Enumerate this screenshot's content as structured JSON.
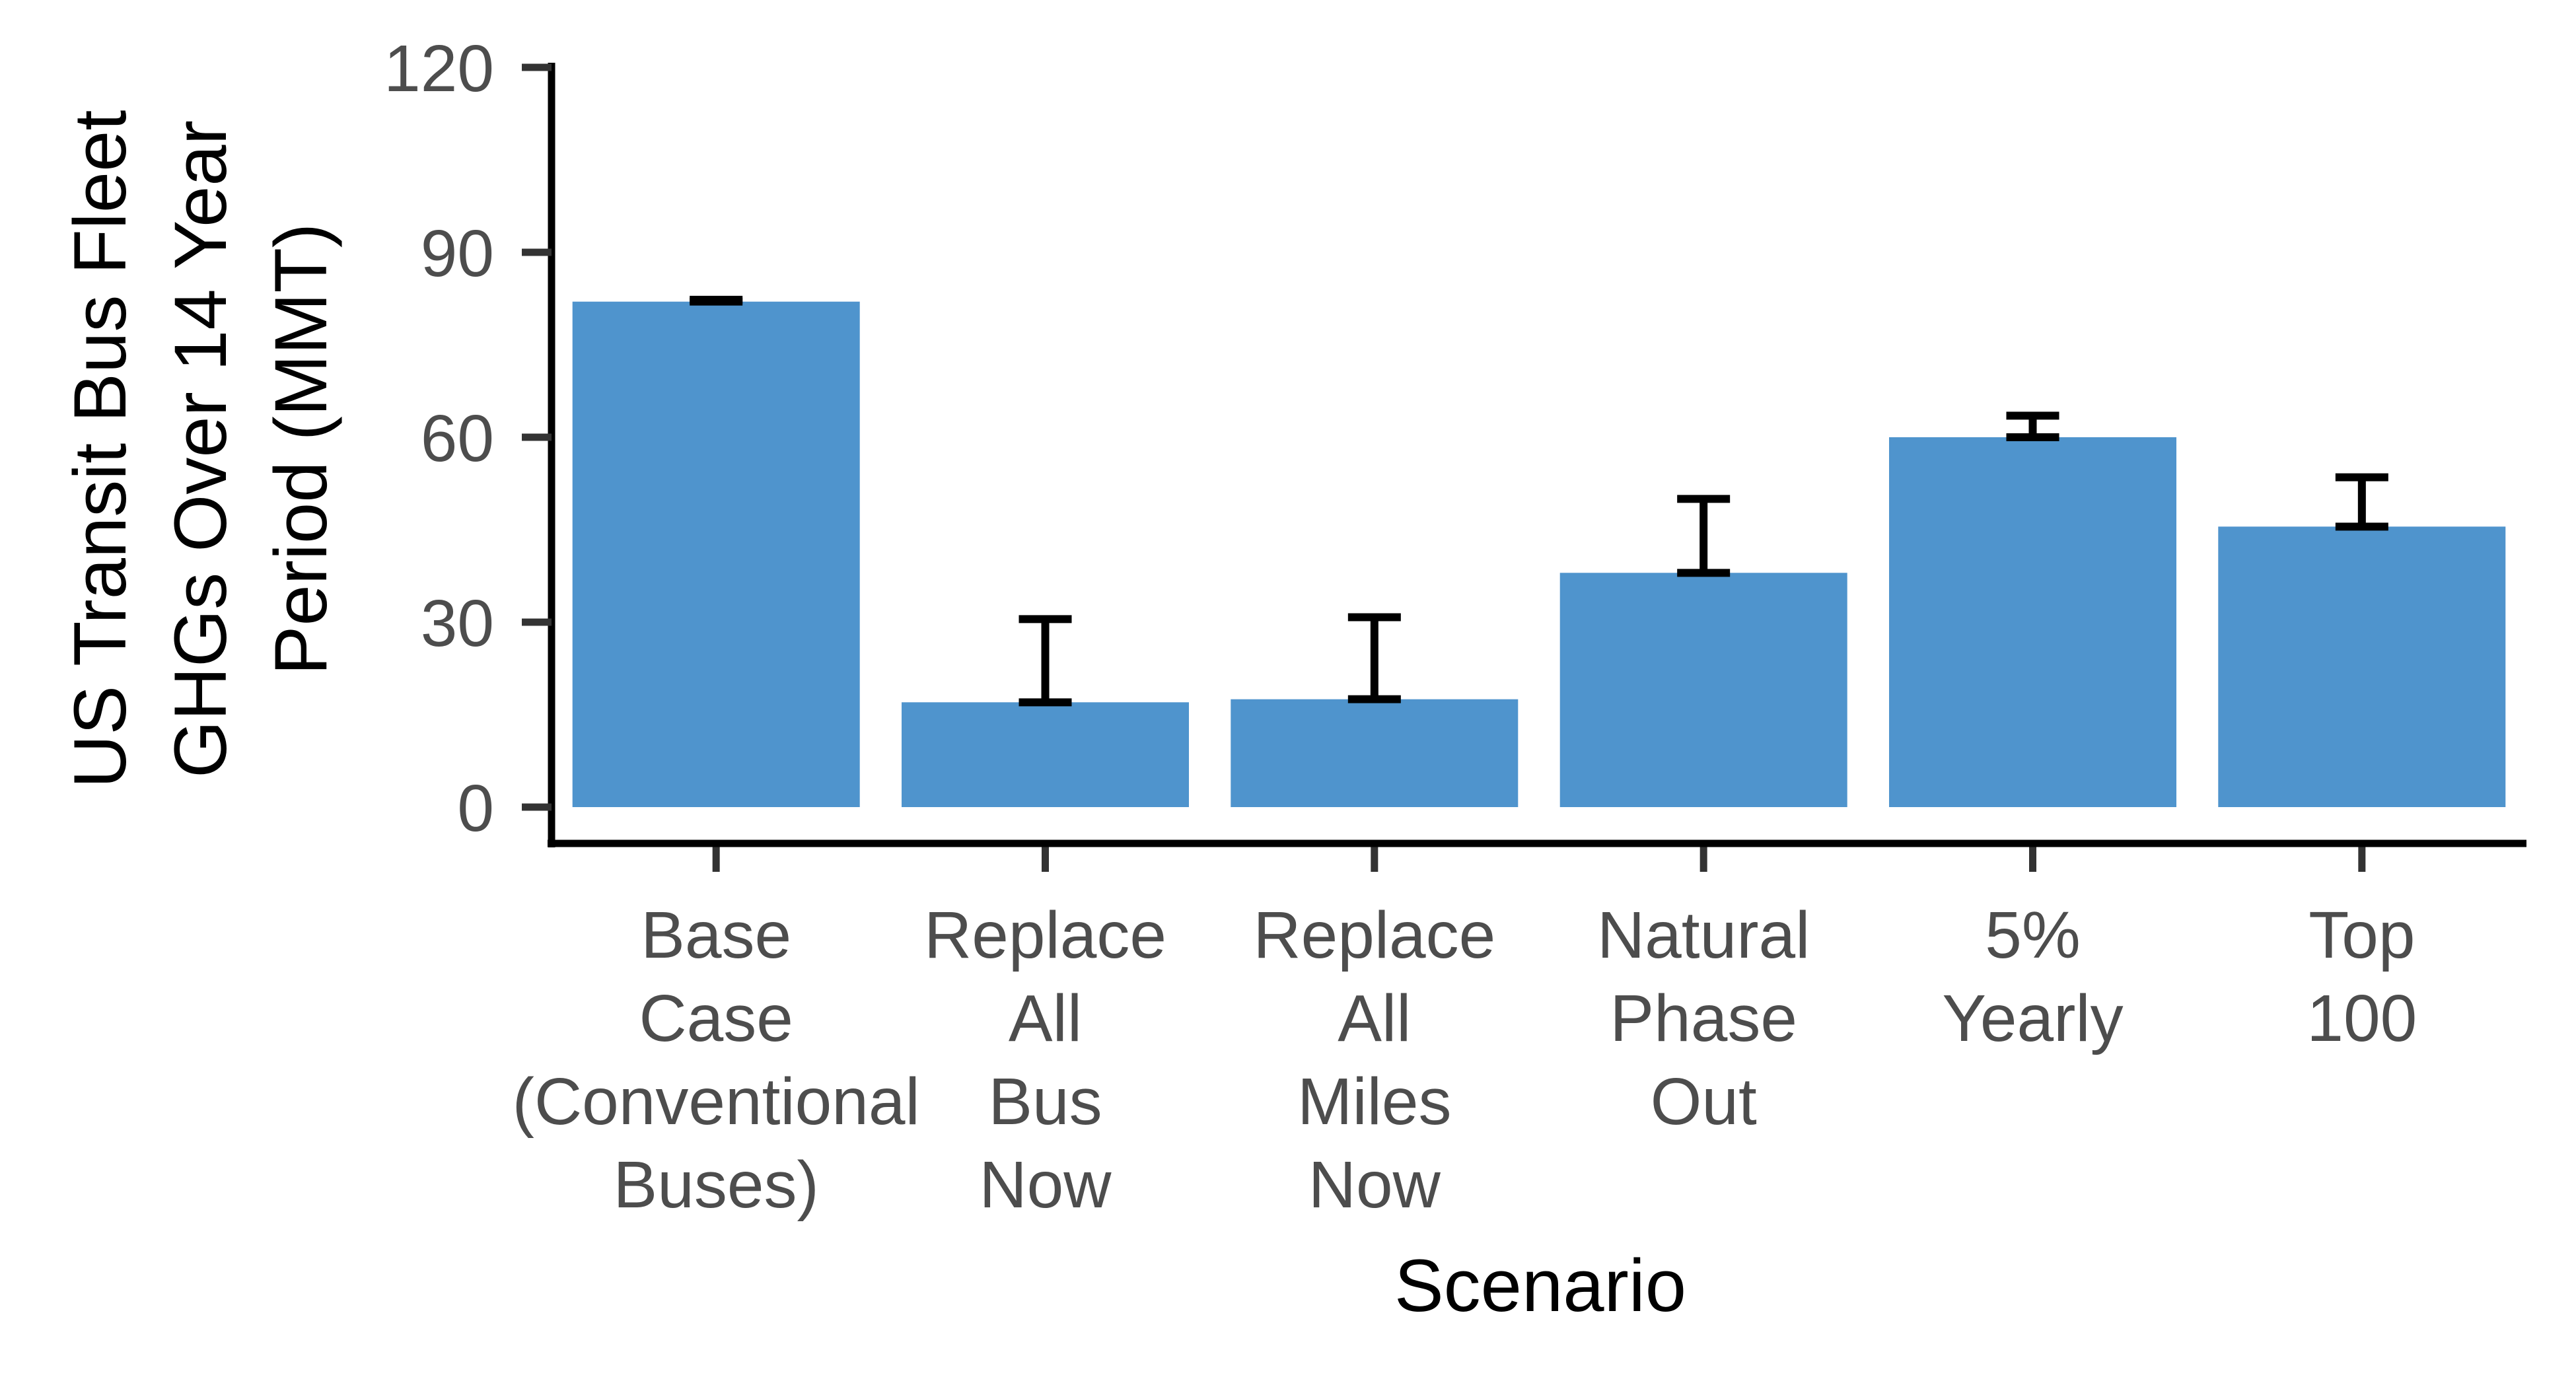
{
  "chart_data": {
    "type": "bar",
    "xlabel": "Scenario",
    "ylabel_lines": [
      "US Transit Bus Fleet",
      "GHGs Over 14 Year",
      "Period (MMT)"
    ],
    "categories": [
      [
        "Base",
        "Case",
        "(Conventional",
        "Buses)"
      ],
      [
        "Replace",
        "All",
        "Bus",
        "Now"
      ],
      [
        "Replace",
        "All",
        "Miles",
        "Now"
      ],
      [
        "Natural",
        "Phase",
        "Out"
      ],
      [
        "5%",
        "Yearly"
      ],
      [
        "Top",
        "100"
      ]
    ],
    "values": [
      82,
      17,
      17.5,
      38,
      60,
      45.5
    ],
    "error_low": [
      82,
      17,
      17.5,
      38,
      60,
      45.5
    ],
    "error_high": [
      82.3,
      30.5,
      30.8,
      50,
      63.5,
      53.5
    ],
    "yticks": [
      0,
      30,
      60,
      90,
      120
    ],
    "ylim": [
      -5,
      120
    ],
    "bar_color": "#4f94cd",
    "errorbar_color": "#000000",
    "grid": false,
    "legend": "none"
  }
}
